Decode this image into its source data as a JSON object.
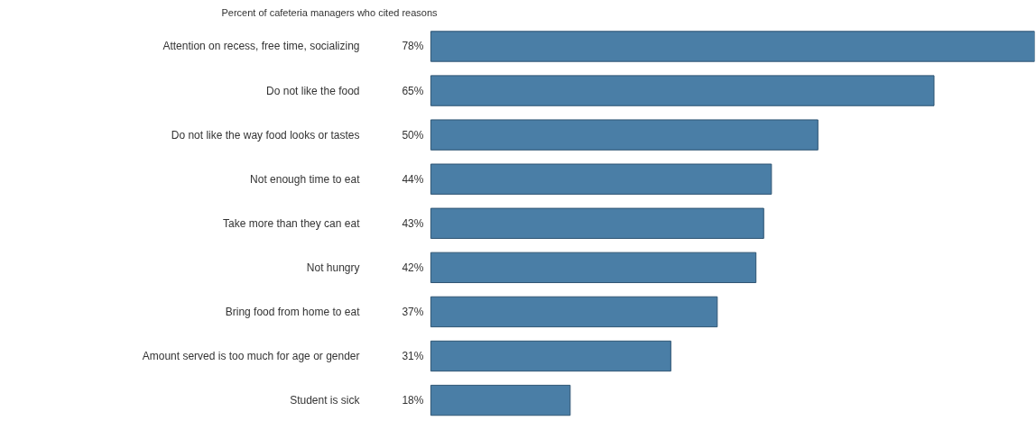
{
  "chart_data": {
    "type": "bar",
    "orientation": "horizontal",
    "title": "Percent of cafeteria managers who cited reasons",
    "categories": [
      "Attention on recess, free time, socializing",
      "Do not like the food",
      "Do not like the way food looks or tastes",
      "Not enough time to eat",
      "Take more than they can eat",
      "Not hungry",
      "Bring food from home to eat",
      "Amount served is too much for age or gender",
      "Student is sick"
    ],
    "values": [
      78,
      65,
      50,
      44,
      43,
      42,
      37,
      31,
      18
    ],
    "value_labels": [
      "78%",
      "65%",
      "50%",
      "44%",
      "43%",
      "42%",
      "37%",
      "31%",
      "18%"
    ],
    "color": "#4a7ea6"
  }
}
